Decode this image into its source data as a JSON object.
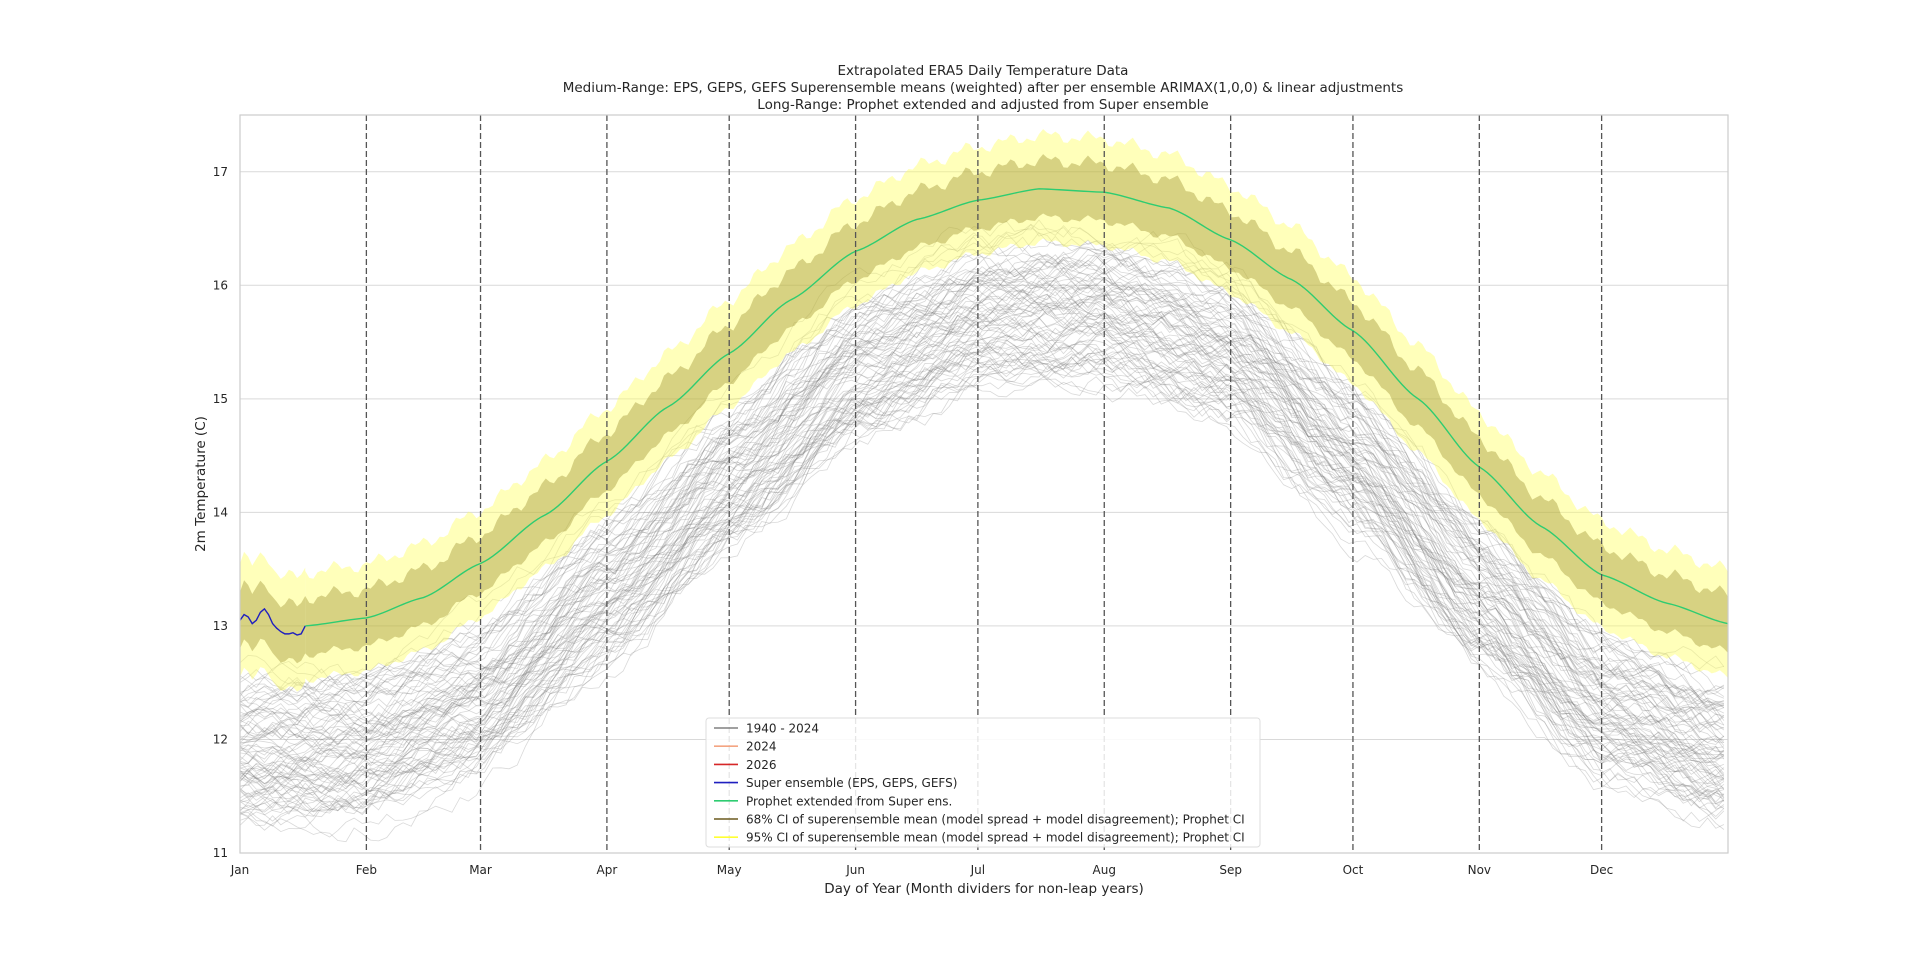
{
  "chart_data": {
    "type": "line",
    "title_lines": [
      "Extrapolated ERA5 Daily Temperature Data",
      "Medium-Range: EPS, GEPS, GEFS Superensemble means (weighted) after per ensemble ARIMAX(1,0,0) & linear adjustments",
      "Long-Range: Prophet extended and adjusted from Super ensemble"
    ],
    "xlabel": "Day of Year (Month dividers for non-leap years)",
    "ylabel": "2m Temperature (C)",
    "xlim": [
      0,
      365
    ],
    "ylim": [
      11,
      17.5
    ],
    "yticks": [
      11,
      12,
      13,
      14,
      15,
      16,
      17
    ],
    "month_ticks": [
      {
        "label": "Jan",
        "day": 0
      },
      {
        "label": "Feb",
        "day": 31
      },
      {
        "label": "Mar",
        "day": 59
      },
      {
        "label": "Apr",
        "day": 90
      },
      {
        "label": "May",
        "day": 120
      },
      {
        "label": "Jun",
        "day": 151
      },
      {
        "label": "Jul",
        "day": 181
      },
      {
        "label": "Aug",
        "day": 212
      },
      {
        "label": "Sep",
        "day": 243
      },
      {
        "label": "Oct",
        "day": 273
      },
      {
        "label": "Nov",
        "day": 304
      },
      {
        "label": "Dec",
        "day": 334
      }
    ],
    "grid": true,
    "legend_position": "lower-center",
    "legend": [
      {
        "label": "1940 - 2024",
        "color": "#808080"
      },
      {
        "label": "2024",
        "color": "#f4a582"
      },
      {
        "label": "2026",
        "color": "#d62728"
      },
      {
        "label": "Super ensemble (EPS, GEPS, GEFS)",
        "color": "#1f1fbf"
      },
      {
        "label": "Prophet extended from Super ens.",
        "color": "#2ecc71"
      },
      {
        "label": "68% CI of superensemble mean (model spread + model disagreement); Prophet CI",
        "color": "#6b5a1e"
      },
      {
        "label": "95% CI of superensemble mean (model spread + model disagreement); Prophet CI",
        "color": "#ffff33"
      }
    ],
    "historical": {
      "years": [
        1940,
        2024
      ],
      "climatology_days": [
        0,
        31,
        59,
        90,
        120,
        151,
        181,
        212,
        243,
        273,
        304,
        334,
        365
      ],
      "climatology_mean": [
        11.9,
        11.95,
        12.35,
        13.3,
        14.3,
        15.25,
        15.75,
        15.8,
        15.45,
        14.5,
        13.3,
        12.3,
        11.9
      ],
      "spread": 0.3
    },
    "super_ensemble": {
      "days": [
        0,
        1,
        2,
        3,
        4,
        5,
        6,
        7,
        8,
        9,
        10,
        11,
        12,
        13,
        14,
        15,
        16
      ],
      "values": [
        13.05,
        13.1,
        13.08,
        13.02,
        13.05,
        13.12,
        13.15,
        13.1,
        13.02,
        12.98,
        12.95,
        12.93,
        12.93,
        12.94,
        12.92,
        12.93,
        13.0
      ],
      "ci68": 0.25,
      "ci95": 0.5
    },
    "prophet": {
      "days": [
        16,
        31,
        45,
        59,
        75,
        90,
        105,
        120,
        135,
        151,
        166,
        181,
        196,
        212,
        228,
        243,
        258,
        273,
        289,
        304,
        319,
        334,
        350,
        365
      ],
      "values": [
        13.0,
        13.07,
        13.25,
        13.55,
        13.98,
        14.45,
        14.93,
        15.4,
        15.87,
        16.3,
        16.58,
        16.75,
        16.85,
        16.82,
        16.68,
        16.4,
        16.05,
        15.6,
        15.0,
        14.4,
        13.88,
        13.45,
        13.2,
        13.02
      ],
      "ci68": 0.25,
      "ci95": 0.47
    }
  }
}
